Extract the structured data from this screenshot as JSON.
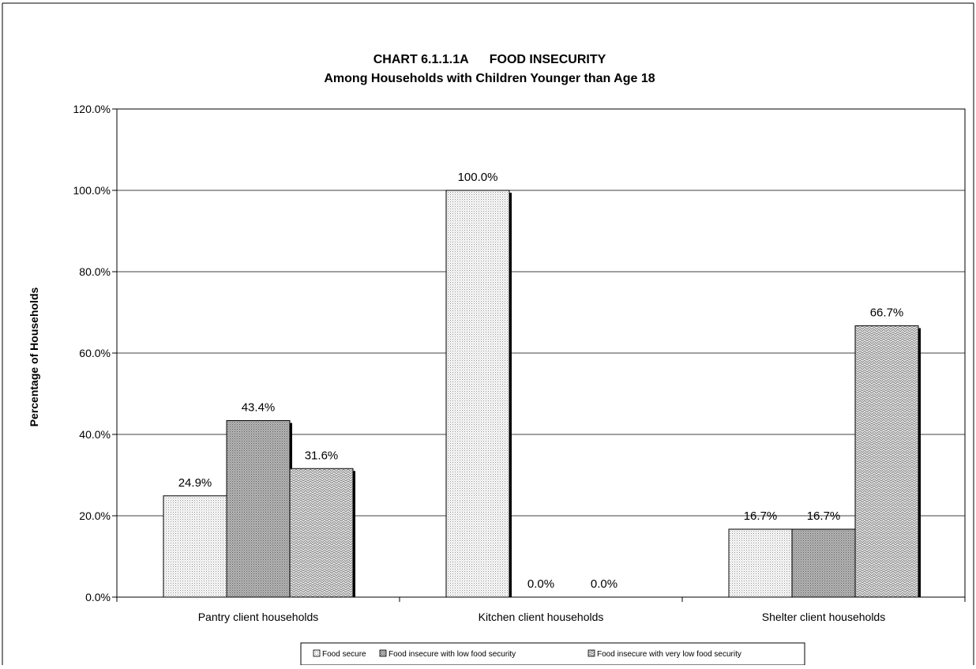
{
  "chart_data": {
    "type": "bar",
    "title": "CHART 6.1.1.1A      FOOD INSECURITY",
    "subtitle": "Among Households with Children Younger than Age 18",
    "xlabel": "",
    "ylabel": "Percentage of Households",
    "ylim": [
      0,
      120
    ],
    "yticks": [
      0,
      20,
      40,
      60,
      80,
      100,
      120
    ],
    "ytick_labels": [
      "0.0%",
      "20.0%",
      "40.0%",
      "60.0%",
      "80.0%",
      "100.0%",
      "120.0%"
    ],
    "grid": true,
    "legend_position": "bottom",
    "categories": [
      "Pantry client households",
      "Kitchen client households",
      "Shelter client households"
    ],
    "series": [
      {
        "name": "Food secure",
        "values": [
          24.9,
          100.0,
          16.7
        ],
        "labels": [
          "24.9%",
          "100.0%",
          "16.7%"
        ],
        "pattern": "dots"
      },
      {
        "name": "Food insecure with low food security",
        "values": [
          43.4,
          0.0,
          16.7
        ],
        "labels": [
          "43.4%",
          "0.0%",
          "16.7%"
        ],
        "pattern": "crosshatch"
      },
      {
        "name": "Food insecure with very low food security",
        "values": [
          31.6,
          0.0,
          66.7
        ],
        "labels": [
          "31.6%",
          "0.0%",
          "66.7%"
        ],
        "pattern": "zigzag"
      }
    ]
  }
}
